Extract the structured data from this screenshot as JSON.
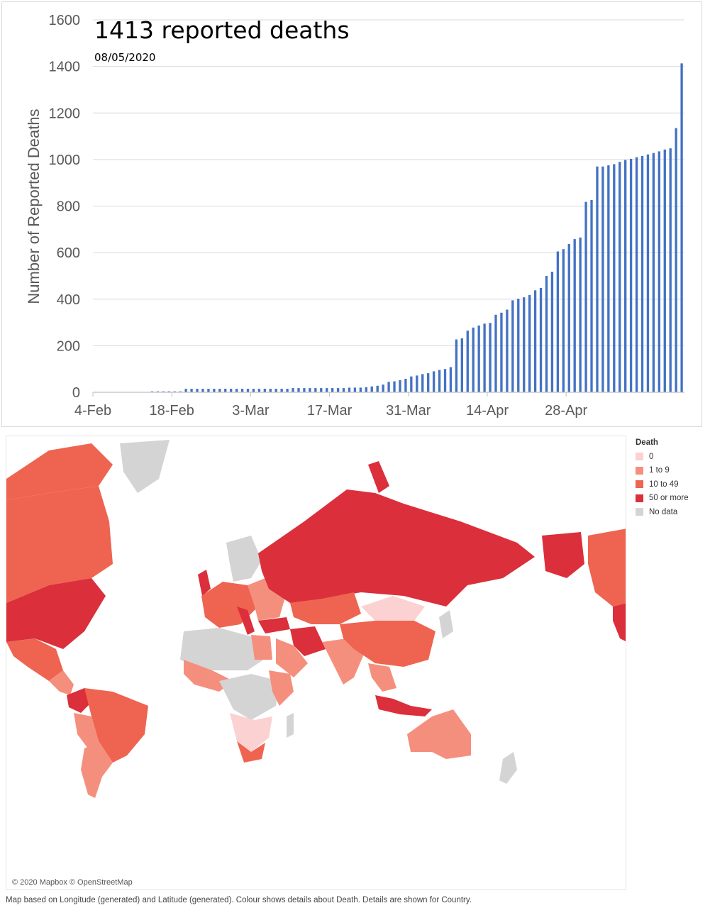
{
  "chart_data": {
    "type": "bar",
    "title": "1413 reported deaths",
    "subtitle": "08/05/2020",
    "xlabel": "",
    "ylabel": "Number of Reported Deaths",
    "ylim": [
      0,
      1600
    ],
    "yticks": [
      0,
      200,
      400,
      600,
      800,
      1000,
      1200,
      1400,
      1600
    ],
    "xtick_labels": [
      "4-Feb",
      "18-Feb",
      "3-Mar",
      "17-Mar",
      "31-Mar",
      "14-Apr",
      "28-Apr"
    ],
    "grid": true,
    "start_date": "4-Feb",
    "series_color": "#4472C4",
    "values": [
      0,
      0,
      0,
      0,
      0,
      0,
      0,
      0,
      0,
      0,
      4,
      4,
      4,
      4,
      4,
      4,
      15,
      15,
      15,
      15,
      15,
      15,
      15,
      15,
      15,
      15,
      15,
      15,
      15,
      15,
      15,
      15,
      15,
      15,
      15,
      18,
      18,
      18,
      18,
      18,
      18,
      18,
      18,
      18,
      18,
      20,
      20,
      20,
      22,
      25,
      28,
      33,
      45,
      47,
      52,
      58,
      68,
      72,
      78,
      82,
      90,
      96,
      100,
      108,
      227,
      232,
      265,
      278,
      287,
      295,
      298,
      333,
      342,
      355,
      395,
      402,
      408,
      418,
      438,
      448,
      500,
      518,
      605,
      615,
      637,
      658,
      665,
      818,
      826,
      970,
      970,
      975,
      980,
      990,
      998,
      1003,
      1010,
      1015,
      1022,
      1028,
      1035,
      1043,
      1048,
      1135,
      1413
    ]
  },
  "map": {
    "legend_title": "Death",
    "legend": [
      {
        "label": "0",
        "color": "#FCD1D1"
      },
      {
        "label": "1 to 9",
        "color": "#F58F7D"
      },
      {
        "label": "10 to 49",
        "color": "#EE6450"
      },
      {
        "label": "50 or more",
        "color": "#DB2F3B"
      },
      {
        "label": "No data",
        "color": "#D4D4D4"
      }
    ],
    "attribution": "© 2020 Mapbox © OpenStreetMap"
  },
  "footnote": "Map based on Longitude (generated) and Latitude (generated).  Colour shows details about Death.  Details are shown for Country."
}
